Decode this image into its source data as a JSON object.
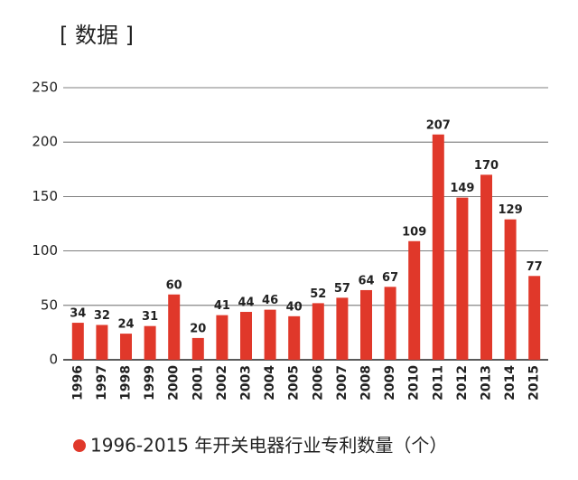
{
  "chart_data": {
    "type": "bar",
    "title": "[ 数据 ]",
    "categories": [
      "1996",
      "1997",
      "1998",
      "1999",
      "2000",
      "2001",
      "2002",
      "2003",
      "2004",
      "2005",
      "2006",
      "2007",
      "2008",
      "2009",
      "2010",
      "2011",
      "2012",
      "2013",
      "2014",
      "2015"
    ],
    "values": [
      34,
      32,
      24,
      31,
      60,
      20,
      41,
      44,
      46,
      40,
      52,
      57,
      64,
      67,
      109,
      207,
      149,
      170,
      129,
      77
    ],
    "color": "#e0382a",
    "ylim": [
      0,
      250
    ],
    "yticks": [
      0,
      50,
      100,
      150,
      200,
      250
    ],
    "grid": true,
    "legend": "1996-2015 年开关电器行业专利数量（个）",
    "legend_position": "bottom-left"
  }
}
